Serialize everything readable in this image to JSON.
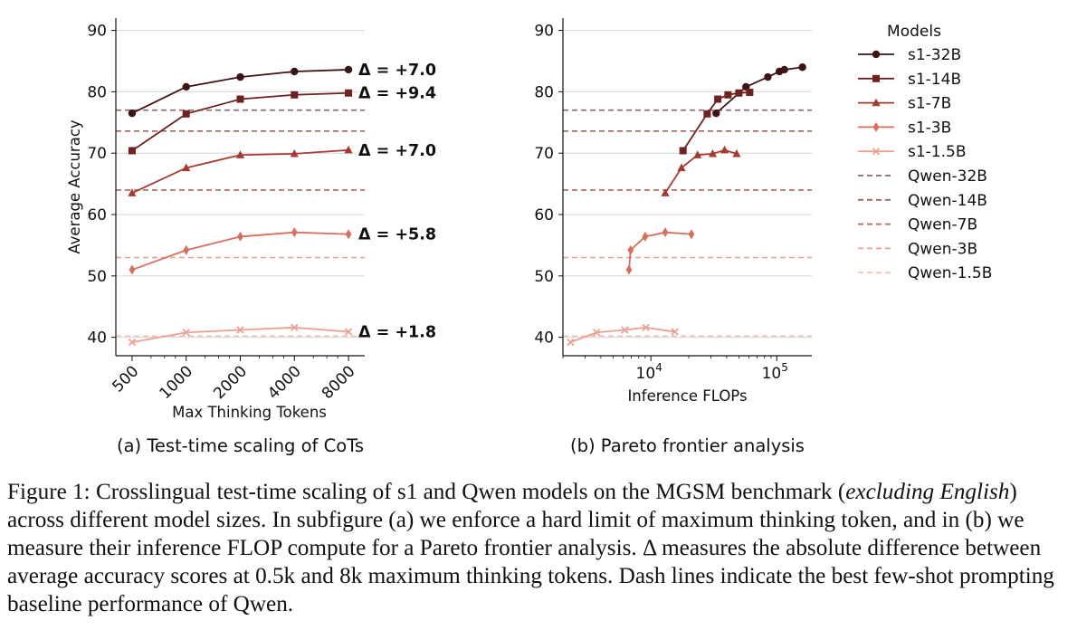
{
  "colors": {
    "s1-32B": "#3d1414",
    "s1-14B": "#6e2320",
    "s1-7B": "#a63a30",
    "s1-3B": "#d6705e",
    "s1-1.5B": "#eaa293",
    "Qwen-32B": "#8a6a6a",
    "Qwen-14B": "#9e6560",
    "Qwen-7B": "#b4645a",
    "Qwen-3B": "#e8a08f",
    "Qwen-1.5B": "#f3c2b6",
    "grid": "#d6d6d6"
  },
  "chart_data": [
    {
      "id": "a",
      "type": "line",
      "xscale": "log2",
      "categories": [
        "500",
        "1000",
        "2000",
        "4000",
        "8000"
      ],
      "x": [
        500,
        1000,
        2000,
        4000,
        8000
      ],
      "xlabel": "Max Thinking Tokens",
      "ylabel": "Average Accuracy",
      "ylim": [
        37,
        92
      ],
      "yticks": [
        "40",
        "50",
        "60",
        "70",
        "80",
        "90"
      ],
      "subtitle": "(a) Test-time scaling of CoTs",
      "series": [
        {
          "name": "s1-32B",
          "marker": "circle",
          "values": [
            76.5,
            80.8,
            82.4,
            83.3,
            83.6
          ],
          "delta": "Δ = +7.0"
        },
        {
          "name": "s1-14B",
          "marker": "square",
          "values": [
            70.4,
            76.4,
            78.8,
            79.5,
            79.8
          ],
          "delta": "Δ = +9.4"
        },
        {
          "name": "s1-7B",
          "marker": "triangle",
          "values": [
            63.5,
            67.6,
            69.7,
            69.9,
            70.5
          ],
          "delta": "Δ = +7.0"
        },
        {
          "name": "s1-3B",
          "marker": "diamond",
          "values": [
            51.0,
            54.2,
            56.4,
            57.1,
            56.8
          ],
          "delta": "Δ = +5.8"
        },
        {
          "name": "s1-1.5B",
          "marker": "x",
          "values": [
            39.2,
            40.8,
            41.2,
            41.6,
            40.9
          ],
          "delta": "Δ = +1.8"
        }
      ],
      "baselines": [
        {
          "name": "Qwen-32B",
          "value": 77.0
        },
        {
          "name": "Qwen-14B",
          "value": 73.6
        },
        {
          "name": "Qwen-7B",
          "value": 64.0
        },
        {
          "name": "Qwen-3B",
          "value": 53.0
        },
        {
          "name": "Qwen-1.5B",
          "value": 40.2
        }
      ]
    },
    {
      "id": "b",
      "type": "line",
      "xscale": "log10",
      "xlim": [
        2000,
        190000
      ],
      "xticks": [
        {
          "value": 10000,
          "base": "10",
          "exp": "4"
        },
        {
          "value": 100000,
          "base": "10",
          "exp": "5"
        }
      ],
      "xlabel": "Inference FLOPs",
      "ylim": [
        37,
        92
      ],
      "yticks": [
        "40",
        "50",
        "60",
        "70",
        "80",
        "90"
      ],
      "subtitle": "(b) Pareto frontier analysis",
      "series": [
        {
          "name": "s1-32B",
          "marker": "circle",
          "points": [
            [
              33000,
              76.5
            ],
            [
              57000,
              80.8
            ],
            [
              85000,
              82.4
            ],
            [
              105000,
              83.3
            ],
            [
              115000,
              83.6
            ],
            [
              160000,
              84.0
            ]
          ]
        },
        {
          "name": "s1-14B",
          "marker": "square",
          "points": [
            [
              18000,
              70.4
            ],
            [
              28000,
              76.4
            ],
            [
              34000,
              78.8
            ],
            [
              41000,
              79.5
            ],
            [
              50000,
              79.8
            ],
            [
              61000,
              79.9
            ]
          ]
        },
        {
          "name": "s1-7B",
          "marker": "triangle",
          "points": [
            [
              13000,
              63.5
            ],
            [
              17500,
              67.6
            ],
            [
              23500,
              69.7
            ],
            [
              31000,
              69.9
            ],
            [
              38500,
              70.5
            ],
            [
              48000,
              69.9
            ]
          ]
        },
        {
          "name": "s1-3B",
          "marker": "diamond",
          "points": [
            [
              6700,
              51.0
            ],
            [
              6900,
              54.2
            ],
            [
              9000,
              56.4
            ],
            [
              13000,
              57.1
            ],
            [
              21000,
              56.8
            ]
          ]
        },
        {
          "name": "s1-1.5B",
          "marker": "x",
          "points": [
            [
              2300,
              39.2
            ],
            [
              3700,
              40.8
            ],
            [
              6200,
              41.2
            ],
            [
              9100,
              41.6
            ],
            [
              15500,
              40.9
            ]
          ]
        }
      ],
      "baselines": [
        {
          "name": "Qwen-32B",
          "value": 77.0
        },
        {
          "name": "Qwen-14B",
          "value": 73.6
        },
        {
          "name": "Qwen-7B",
          "value": 64.0
        },
        {
          "name": "Qwen-3B",
          "value": 53.0
        },
        {
          "name": "Qwen-1.5B",
          "value": 40.2
        }
      ]
    }
  ],
  "legend": {
    "title": "Models",
    "entries": [
      {
        "name": "s1-32B",
        "style": "solid",
        "marker": "circle"
      },
      {
        "name": "s1-14B",
        "style": "solid",
        "marker": "square"
      },
      {
        "name": "s1-7B",
        "style": "solid",
        "marker": "triangle"
      },
      {
        "name": "s1-3B",
        "style": "solid",
        "marker": "diamond"
      },
      {
        "name": "s1-1.5B",
        "style": "solid",
        "marker": "x"
      },
      {
        "name": "Qwen-32B",
        "style": "dashed",
        "marker": "none"
      },
      {
        "name": "Qwen-14B",
        "style": "dashed",
        "marker": "none"
      },
      {
        "name": "Qwen-7B",
        "style": "dashed",
        "marker": "none"
      },
      {
        "name": "Qwen-3B",
        "style": "dashed",
        "marker": "none"
      },
      {
        "name": "Qwen-1.5B",
        "style": "dashed",
        "marker": "none"
      }
    ]
  },
  "caption": {
    "part1": "Figure 1: Crosslingual test-time scaling of s1 and Qwen models on the MGSM benchmark (",
    "italic1": "excluding",
    "italic2": "English",
    "part2": ") across different model sizes. In subfigure (a) we enforce a hard limit of maximum thinking token, and in (b) we measure their inference FLOP compute for a Pareto frontier analysis. Δ measures the absolute difference between average accuracy scores at 0.5k and 8k maximum thinking tokens. Dash lines indicate the best few-shot prompting baseline performance of Qwen."
  }
}
